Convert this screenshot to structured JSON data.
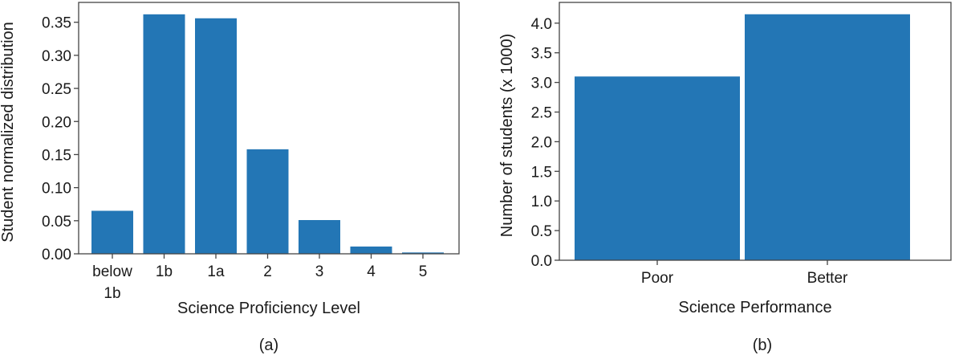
{
  "colors": {
    "bar": "#2376b5"
  },
  "chart_data": [
    {
      "type": "bar",
      "panel_label": "(a)",
      "categories": [
        [
          "below",
          "1b"
        ],
        [
          "1b"
        ],
        [
          "1a"
        ],
        [
          "2"
        ],
        [
          "3"
        ],
        [
          "4"
        ],
        [
          "5"
        ]
      ],
      "values": [
        0.065,
        0.362,
        0.356,
        0.158,
        0.051,
        0.011,
        0.002
      ],
      "xlabel": "Science Proficiency Level",
      "ylabel": "Student normalized distribution",
      "ylim": [
        0,
        0.38
      ],
      "yticks": [
        "0.00",
        "0.05",
        "0.10",
        "0.15",
        "0.20",
        "0.25",
        "0.30",
        "0.35"
      ],
      "grid": false
    },
    {
      "type": "bar",
      "panel_label": "(b)",
      "categories": [
        [
          "Poor"
        ],
        [
          "Better"
        ]
      ],
      "values": [
        3.1,
        4.15
      ],
      "xlabel": "Science Performance",
      "ylabel": "Number of students (x 1000)",
      "ylim": [
        0,
        4.35
      ],
      "yticks": [
        "0.0",
        "0.5",
        "1.0",
        "1.5",
        "2.0",
        "2.5",
        "3.0",
        "3.5",
        "4.0"
      ],
      "grid": false
    }
  ]
}
